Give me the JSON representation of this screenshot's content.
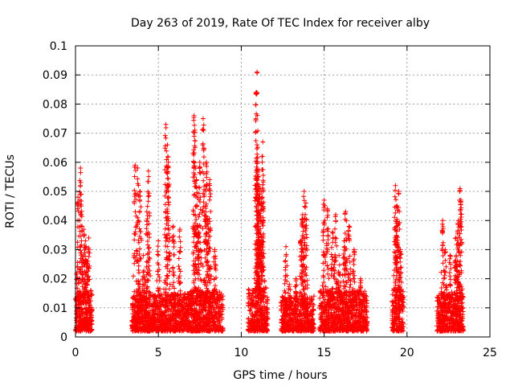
{
  "chart_data": {
    "type": "scatter",
    "title": "Day 263 of 2019, Rate Of TEC Index for receiver alby",
    "xlabel": "GPS time / hours",
    "ylabel": "ROTI / TECUs",
    "xlim": [
      0,
      25
    ],
    "ylim": [
      0,
      0.1
    ],
    "x_ticks": [
      "0",
      "5",
      "10",
      "15",
      "20",
      "25"
    ],
    "y_ticks": [
      "0",
      "0.01",
      "0.02",
      "0.03",
      "0.04",
      "0.05",
      "0.06",
      "0.07",
      "0.08",
      "0.09",
      "0.1"
    ],
    "grid": true,
    "legend": "none",
    "marker": "+",
    "color": "#ff0000",
    "clusters": [
      {
        "x": [
          0.0,
          1.0
        ],
        "base_max": 0.014,
        "peaks": [
          [
            0.15,
            0.048
          ],
          [
            0.3,
            0.058
          ],
          [
            0.35,
            0.045
          ],
          [
            0.5,
            0.037
          ],
          [
            0.6,
            0.033
          ],
          [
            0.8,
            0.034
          ],
          [
            0.7,
            0.026
          ]
        ]
      },
      {
        "x": [
          3.4,
          6.8
        ],
        "base_max": 0.013,
        "peaks": [
          [
            3.6,
            0.059
          ],
          [
            3.75,
            0.058
          ],
          [
            3.9,
            0.05
          ],
          [
            4.4,
            0.057
          ],
          [
            4.3,
            0.043
          ],
          [
            5.45,
            0.073
          ],
          [
            5.55,
            0.066
          ],
          [
            5.6,
            0.06
          ],
          [
            5.0,
            0.033
          ],
          [
            5.9,
            0.038
          ],
          [
            6.3,
            0.037
          ],
          [
            4.1,
            0.028
          ]
        ]
      },
      {
        "x": [
          6.8,
          8.9
        ],
        "base_max": 0.014,
        "peaks": [
          [
            7.15,
            0.076
          ],
          [
            7.2,
            0.071
          ],
          [
            7.7,
            0.075
          ],
          [
            7.5,
            0.06
          ],
          [
            7.3,
            0.054
          ],
          [
            7.9,
            0.06
          ],
          [
            8.1,
            0.054
          ],
          [
            7.85,
            0.045
          ],
          [
            8.0,
            0.039
          ],
          [
            7.4,
            0.038
          ],
          [
            8.4,
            0.03
          ]
        ]
      },
      {
        "x": [
          10.4,
          11.6
        ],
        "base_max": 0.015,
        "peaks": [
          [
            10.95,
            0.091
          ],
          [
            10.9,
            0.084
          ],
          [
            10.95,
            0.066
          ],
          [
            11.0,
            0.057
          ],
          [
            11.3,
            0.067
          ],
          [
            11.25,
            0.062
          ],
          [
            11.1,
            0.051
          ],
          [
            11.0,
            0.047
          ],
          [
            11.2,
            0.04
          ],
          [
            11.05,
            0.038
          ]
        ]
      },
      {
        "x": [
          12.4,
          14.4
        ],
        "base_max": 0.012,
        "peaks": [
          [
            12.7,
            0.031
          ],
          [
            13.8,
            0.05
          ],
          [
            13.9,
            0.046
          ],
          [
            13.7,
            0.042
          ],
          [
            13.6,
            0.033
          ],
          [
            13.3,
            0.02
          ],
          [
            12.9,
            0.018
          ]
        ]
      },
      {
        "x": [
          14.7,
          17.6
        ],
        "base_max": 0.014,
        "peaks": [
          [
            15.0,
            0.047
          ],
          [
            15.2,
            0.044
          ],
          [
            15.7,
            0.042
          ],
          [
            16.3,
            0.043
          ],
          [
            16.5,
            0.038
          ],
          [
            15.5,
            0.036
          ],
          [
            16.2,
            0.033
          ],
          [
            16.8,
            0.03
          ],
          [
            17.2,
            0.02
          ],
          [
            15.9,
            0.028
          ]
        ]
      },
      {
        "x": [
          19.1,
          19.8
        ],
        "base_max": 0.015,
        "peaks": [
          [
            19.3,
            0.052
          ],
          [
            19.5,
            0.05
          ],
          [
            19.4,
            0.045
          ],
          [
            19.35,
            0.038
          ],
          [
            19.6,
            0.03
          ]
        ]
      },
      {
        "x": [
          21.8,
          23.4
        ],
        "base_max": 0.013,
        "peaks": [
          [
            22.15,
            0.04
          ],
          [
            22.3,
            0.03
          ],
          [
            22.6,
            0.028
          ],
          [
            23.2,
            0.051
          ],
          [
            23.25,
            0.047
          ],
          [
            23.1,
            0.04
          ],
          [
            22.95,
            0.034
          ],
          [
            23.0,
            0.025
          ]
        ]
      }
    ]
  }
}
